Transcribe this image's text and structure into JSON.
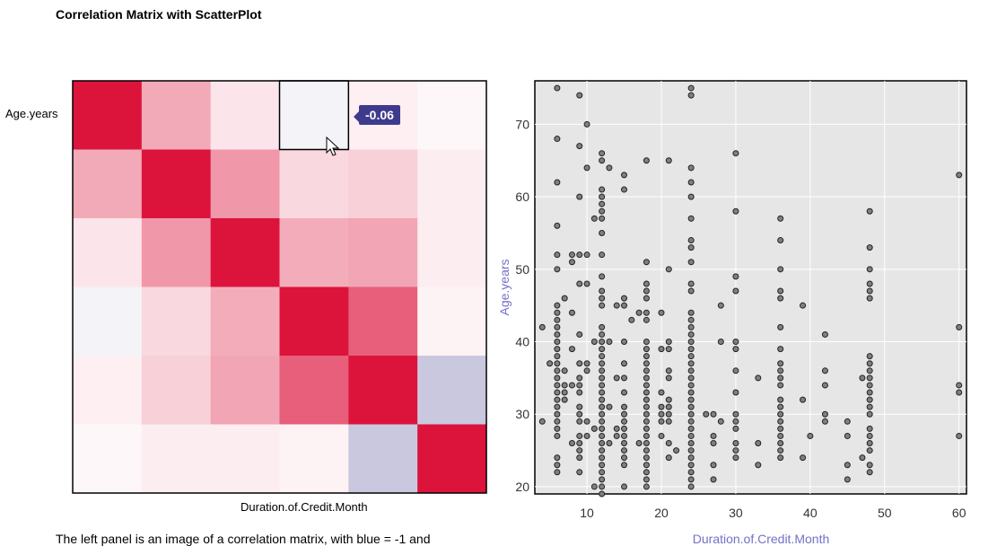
{
  "title": "Correlation Matrix with ScatterPlot",
  "caption": "The left panel is an image of a correlation matrix, with blue = -1 and",
  "chart_data": [
    {
      "type": "heatmap",
      "title": "Correlation Matrix",
      "row_label": "Age.years",
      "col_label": "Duration.of.Credit.Month",
      "color_scale": {
        "neg": "#3f3b8c",
        "zero": "#ffffff",
        "pos": "#dc143c"
      },
      "values": [
        [
          1.0,
          0.33,
          0.1,
          -0.06,
          0.06,
          0.03
        ],
        [
          0.33,
          1.0,
          0.4,
          0.15,
          0.18,
          0.07
        ],
        [
          0.1,
          0.4,
          1.0,
          0.32,
          0.35,
          0.07
        ],
        [
          -0.06,
          0.15,
          0.32,
          1.0,
          0.62,
          0.05
        ],
        [
          0.06,
          0.18,
          0.35,
          0.62,
          1.0,
          -0.28
        ],
        [
          0.03,
          0.07,
          0.07,
          0.05,
          -0.28,
          1.0
        ]
      ],
      "highlight": {
        "row": 0,
        "col": 3
      },
      "tooltip": "-0.06"
    },
    {
      "type": "scatter",
      "xlabel": "Duration.of.Credit.Month",
      "ylabel": "Age.years",
      "xlim": [
        3,
        61
      ],
      "ylim": [
        19,
        76
      ],
      "xticks": [
        "10",
        "20",
        "30",
        "40",
        "50",
        "60"
      ],
      "yticks": [
        "20",
        "30",
        "40",
        "50",
        "60",
        "70"
      ],
      "point_color": "#808080",
      "points": [
        [
          4,
          42
        ],
        [
          4,
          29
        ],
        [
          5,
          37
        ],
        [
          6,
          75
        ],
        [
          6,
          68
        ],
        [
          6,
          62
        ],
        [
          6,
          56
        ],
        [
          6,
          52
        ],
        [
          6,
          50
        ],
        [
          6,
          45
        ],
        [
          6,
          44
        ],
        [
          6,
          43
        ],
        [
          6,
          42
        ],
        [
          6,
          41
        ],
        [
          6,
          40
        ],
        [
          6,
          39
        ],
        [
          6,
          38
        ],
        [
          6,
          37
        ],
        [
          6,
          36
        ],
        [
          6,
          35
        ],
        [
          6,
          34
        ],
        [
          6,
          33
        ],
        [
          6,
          32
        ],
        [
          6,
          31
        ],
        [
          6,
          30
        ],
        [
          6,
          29
        ],
        [
          6,
          28
        ],
        [
          6,
          27
        ],
        [
          6,
          24
        ],
        [
          6,
          23
        ],
        [
          6,
          22
        ],
        [
          7,
          46
        ],
        [
          7,
          36
        ],
        [
          7,
          34
        ],
        [
          7,
          33
        ],
        [
          7,
          32
        ],
        [
          8,
          52
        ],
        [
          8,
          51
        ],
        [
          8,
          44
        ],
        [
          8,
          39
        ],
        [
          8,
          34
        ],
        [
          8,
          26
        ],
        [
          9,
          74
        ],
        [
          9,
          67
        ],
        [
          9,
          60
        ],
        [
          9,
          52
        ],
        [
          9,
          48
        ],
        [
          9,
          41
        ],
        [
          9,
          37
        ],
        [
          9,
          35
        ],
        [
          9,
          34
        ],
        [
          9,
          33
        ],
        [
          9,
          31
        ],
        [
          9,
          30
        ],
        [
          9,
          29
        ],
        [
          9,
          27
        ],
        [
          9,
          26
        ],
        [
          9,
          25
        ],
        [
          9,
          24
        ],
        [
          9,
          22
        ],
        [
          10,
          70
        ],
        [
          10,
          64
        ],
        [
          10,
          52
        ],
        [
          10,
          48
        ],
        [
          10,
          37
        ],
        [
          10,
          36
        ],
        [
          10,
          29
        ],
        [
          10,
          27
        ],
        [
          11,
          57
        ],
        [
          11,
          40
        ],
        [
          11,
          28
        ],
        [
          11,
          20
        ],
        [
          12,
          66
        ],
        [
          12,
          65
        ],
        [
          12,
          61
        ],
        [
          12,
          60
        ],
        [
          12,
          59
        ],
        [
          12,
          58
        ],
        [
          12,
          57
        ],
        [
          12,
          55
        ],
        [
          12,
          52
        ],
        [
          12,
          49
        ],
        [
          12,
          47
        ],
        [
          12,
          46
        ],
        [
          12,
          45
        ],
        [
          12,
          42
        ],
        [
          12,
          41
        ],
        [
          12,
          40
        ],
        [
          12,
          39
        ],
        [
          12,
          38
        ],
        [
          12,
          37
        ],
        [
          12,
          36
        ],
        [
          12,
          35
        ],
        [
          12,
          34
        ],
        [
          12,
          33
        ],
        [
          12,
          32
        ],
        [
          12,
          31
        ],
        [
          12,
          30
        ],
        [
          12,
          29
        ],
        [
          12,
          28
        ],
        [
          12,
          27
        ],
        [
          12,
          26
        ],
        [
          12,
          25
        ],
        [
          12,
          24
        ],
        [
          12,
          23
        ],
        [
          12,
          22
        ],
        [
          12,
          21
        ],
        [
          12,
          20
        ],
        [
          12,
          19
        ],
        [
          13,
          64
        ],
        [
          13,
          40
        ],
        [
          13,
          31
        ],
        [
          13,
          26
        ],
        [
          14,
          45
        ],
        [
          14,
          35
        ],
        [
          14,
          28
        ],
        [
          14,
          27
        ],
        [
          15,
          63
        ],
        [
          15,
          61
        ],
        [
          15,
          46
        ],
        [
          15,
          45
        ],
        [
          15,
          40
        ],
        [
          15,
          37
        ],
        [
          15,
          35
        ],
        [
          15,
          33
        ],
        [
          15,
          31
        ],
        [
          15,
          30
        ],
        [
          15,
          29
        ],
        [
          15,
          28
        ],
        [
          15,
          27
        ],
        [
          15,
          26
        ],
        [
          15,
          25
        ],
        [
          15,
          24
        ],
        [
          15,
          23
        ],
        [
          15,
          20
        ],
        [
          16,
          43
        ],
        [
          17,
          44
        ],
        [
          17,
          26
        ],
        [
          18,
          65
        ],
        [
          18,
          51
        ],
        [
          18,
          48
        ],
        [
          18,
          47
        ],
        [
          18,
          46
        ],
        [
          18,
          44
        ],
        [
          18,
          43
        ],
        [
          18,
          40
        ],
        [
          18,
          39
        ],
        [
          18,
          38
        ],
        [
          18,
          37
        ],
        [
          18,
          36
        ],
        [
          18,
          35
        ],
        [
          18,
          34
        ],
        [
          18,
          33
        ],
        [
          18,
          32
        ],
        [
          18,
          31
        ],
        [
          18,
          30
        ],
        [
          18,
          29
        ],
        [
          18,
          28
        ],
        [
          18,
          27
        ],
        [
          18,
          26
        ],
        [
          18,
          25
        ],
        [
          18,
          24
        ],
        [
          18,
          23
        ],
        [
          18,
          22
        ],
        [
          18,
          21
        ],
        [
          18,
          20
        ],
        [
          20,
          44
        ],
        [
          20,
          39
        ],
        [
          20,
          33
        ],
        [
          20,
          31
        ],
        [
          20,
          30
        ],
        [
          20,
          29
        ],
        [
          20,
          27
        ],
        [
          21,
          65
        ],
        [
          21,
          50
        ],
        [
          21,
          40
        ],
        [
          21,
          39
        ],
        [
          21,
          36
        ],
        [
          21,
          35
        ],
        [
          21,
          32
        ],
        [
          21,
          31
        ],
        [
          21,
          30
        ],
        [
          21,
          29
        ],
        [
          21,
          26
        ],
        [
          21,
          24
        ],
        [
          22,
          25
        ],
        [
          24,
          75
        ],
        [
          24,
          74
        ],
        [
          24,
          64
        ],
        [
          24,
          62
        ],
        [
          24,
          60
        ],
        [
          24,
          57
        ],
        [
          24,
          54
        ],
        [
          24,
          53
        ],
        [
          24,
          51
        ],
        [
          24,
          48
        ],
        [
          24,
          47
        ],
        [
          24,
          44
        ],
        [
          24,
          43
        ],
        [
          24,
          42
        ],
        [
          24,
          41
        ],
        [
          24,
          40
        ],
        [
          24,
          39
        ],
        [
          24,
          38
        ],
        [
          24,
          37
        ],
        [
          24,
          36
        ],
        [
          24,
          35
        ],
        [
          24,
          34
        ],
        [
          24,
          33
        ],
        [
          24,
          32
        ],
        [
          24,
          31
        ],
        [
          24,
          30
        ],
        [
          24,
          29
        ],
        [
          24,
          28
        ],
        [
          24,
          27
        ],
        [
          24,
          26
        ],
        [
          24,
          25
        ],
        [
          24,
          24
        ],
        [
          24,
          23
        ],
        [
          24,
          22
        ],
        [
          24,
          21
        ],
        [
          24,
          20
        ],
        [
          26,
          30
        ],
        [
          27,
          30
        ],
        [
          27,
          27
        ],
        [
          27,
          26
        ],
        [
          27,
          23
        ],
        [
          27,
          21
        ],
        [
          28,
          45
        ],
        [
          28,
          29
        ],
        [
          28,
          40
        ],
        [
          30,
          66
        ],
        [
          30,
          58
        ],
        [
          30,
          49
        ],
        [
          30,
          47
        ],
        [
          30,
          40
        ],
        [
          30,
          39
        ],
        [
          30,
          36
        ],
        [
          30,
          33
        ],
        [
          30,
          30
        ],
        [
          30,
          29
        ],
        [
          30,
          28
        ],
        [
          30,
          26
        ],
        [
          30,
          25
        ],
        [
          30,
          24
        ],
        [
          33,
          35
        ],
        [
          33,
          26
        ],
        [
          33,
          23
        ],
        [
          36,
          57
        ],
        [
          36,
          54
        ],
        [
          36,
          50
        ],
        [
          36,
          47
        ],
        [
          36,
          46
        ],
        [
          36,
          42
        ],
        [
          36,
          39
        ],
        [
          36,
          37
        ],
        [
          36,
          36
        ],
        [
          36,
          35
        ],
        [
          36,
          34
        ],
        [
          36,
          32
        ],
        [
          36,
          31
        ],
        [
          36,
          30
        ],
        [
          36,
          29
        ],
        [
          36,
          28
        ],
        [
          36,
          27
        ],
        [
          36,
          26
        ],
        [
          36,
          25
        ],
        [
          36,
          24
        ],
        [
          39,
          45
        ],
        [
          39,
          32
        ],
        [
          39,
          24
        ],
        [
          40,
          27
        ],
        [
          42,
          41
        ],
        [
          42,
          36
        ],
        [
          42,
          34
        ],
        [
          42,
          30
        ],
        [
          42,
          29
        ],
        [
          45,
          29
        ],
        [
          45,
          27
        ],
        [
          45,
          23
        ],
        [
          45,
          21
        ],
        [
          47,
          35
        ],
        [
          47,
          24
        ],
        [
          48,
          58
        ],
        [
          48,
          53
        ],
        [
          48,
          50
        ],
        [
          48,
          48
        ],
        [
          48,
          47
        ],
        [
          48,
          46
        ],
        [
          48,
          38
        ],
        [
          48,
          37
        ],
        [
          48,
          36
        ],
        [
          48,
          35
        ],
        [
          48,
          34
        ],
        [
          48,
          33
        ],
        [
          48,
          32
        ],
        [
          48,
          31
        ],
        [
          48,
          30
        ],
        [
          48,
          28
        ],
        [
          48,
          27
        ],
        [
          48,
          26
        ],
        [
          48,
          25
        ],
        [
          48,
          23
        ],
        [
          48,
          22
        ],
        [
          60,
          63
        ],
        [
          60,
          42
        ],
        [
          60,
          34
        ],
        [
          60,
          33
        ],
        [
          60,
          27
        ]
      ]
    }
  ]
}
